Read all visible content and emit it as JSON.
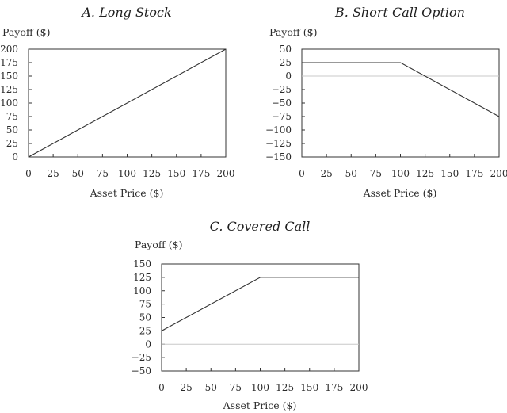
{
  "chart_data": [
    {
      "id": "A",
      "type": "line",
      "title": "A. Long Stock",
      "xlabel": "Asset Price ($)",
      "ylabel": "Payoff ($)",
      "xlim": [
        0,
        200
      ],
      "ylim": [
        0,
        200
      ],
      "xticks": [
        "0",
        "25",
        "50",
        "75",
        "100",
        "125",
        "150",
        "175",
        "200"
      ],
      "yticks": [
        "200",
        "175",
        "150",
        "125",
        "100",
        "75",
        "50",
        "25",
        "0"
      ],
      "grid": false,
      "series": [
        {
          "x": [
            0,
            200
          ],
          "y": [
            0,
            200
          ]
        }
      ]
    },
    {
      "id": "B",
      "type": "line",
      "title": "B. Short Call Option",
      "xlabel": "Asset Price ($)",
      "ylabel": "Payoff ($)",
      "xlim": [
        0,
        200
      ],
      "ylim": [
        -150,
        50
      ],
      "xticks": [
        "0",
        "25",
        "50",
        "75",
        "100",
        "125",
        "150",
        "175",
        "200"
      ],
      "yticks": [
        "50",
        "25",
        "0",
        "−25",
        "−50",
        "−75",
        "−100",
        "−125",
        "−150"
      ],
      "grid": false,
      "zero_line": true,
      "series": [
        {
          "x": [
            0,
            100,
            200
          ],
          "y": [
            25,
            25,
            -75
          ]
        }
      ]
    },
    {
      "id": "C",
      "type": "line",
      "title": "C. Covered Call",
      "xlabel": "Asset Price ($)",
      "ylabel": "Payoff ($)",
      "xlim": [
        0,
        200
      ],
      "ylim": [
        -50,
        150
      ],
      "xticks": [
        "0",
        "25",
        "50",
        "75",
        "100",
        "125",
        "150",
        "175",
        "200"
      ],
      "yticks": [
        "150",
        "125",
        "100",
        "75",
        "50",
        "25",
        "0",
        "−25",
        "−50"
      ],
      "grid": false,
      "zero_line": true,
      "series": [
        {
          "x": [
            0,
            100,
            200
          ],
          "y": [
            25,
            125,
            125
          ]
        }
      ]
    }
  ]
}
